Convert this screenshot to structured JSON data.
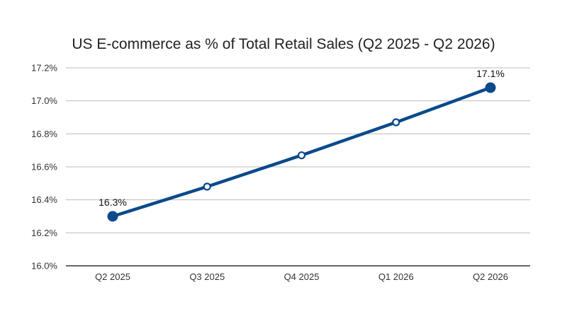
{
  "chart_data": {
    "type": "line",
    "title": "US E-commerce as % of Total Retail Sales (Q2 2025 - Q2 2026)",
    "xlabel": "",
    "ylabel": "",
    "categories": [
      "Q2 2025",
      "Q3 2025",
      "Q4 2025",
      "Q1 2026",
      "Q2 2026"
    ],
    "series": [
      {
        "values": [
          16.3,
          16.48,
          16.67,
          16.87,
          17.08
        ]
      }
    ],
    "ylim": [
      16.0,
      17.2
    ],
    "y_ticks": [
      "16.0%",
      "16.2%",
      "16.4%",
      "16.6%",
      "16.8%",
      "17.0%",
      "17.2%"
    ],
    "data_labels": [
      {
        "index": 0,
        "text": "16.3%"
      },
      {
        "index": 4,
        "text": "17.1%"
      }
    ],
    "grid": true,
    "legend": "none",
    "colors": {
      "line": "#0b4a8b",
      "grid": "#bdbdbd",
      "axis": "#333333"
    }
  }
}
